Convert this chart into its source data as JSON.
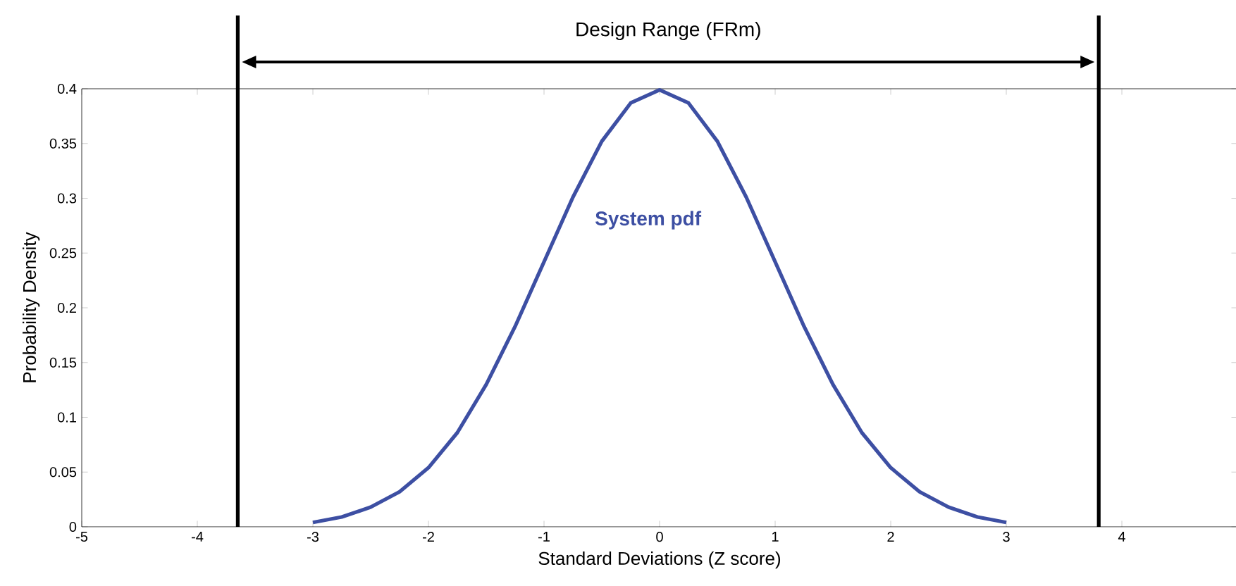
{
  "chart_data": {
    "type": "line",
    "xlabel": "Standard Deviations (Z score)",
    "ylabel": "Probability Density",
    "series": [
      {
        "name": "System pdf",
        "color": "#3d4fa3",
        "x": [
          -3,
          -2.75,
          -2.5,
          -2.25,
          -2,
          -1.75,
          -1.5,
          -1.25,
          -1,
          -0.75,
          -0.5,
          -0.25,
          0,
          0.25,
          0.5,
          0.75,
          1,
          1.25,
          1.5,
          1.75,
          2,
          2.25,
          2.5,
          2.75,
          3
        ],
        "values": [
          0.004,
          0.009,
          0.018,
          0.032,
          0.054,
          0.086,
          0.13,
          0.183,
          0.242,
          0.301,
          0.352,
          0.387,
          0.399,
          0.387,
          0.352,
          0.301,
          0.242,
          0.183,
          0.13,
          0.086,
          0.054,
          0.032,
          0.018,
          0.009,
          0.004
        ]
      }
    ],
    "xlim": [
      -5,
      5
    ],
    "ylim": [
      0,
      0.4
    ],
    "xticks": [
      -5,
      -4,
      -3,
      -2,
      -1,
      0,
      1,
      2,
      3,
      4
    ],
    "yticks": [
      0,
      0.05,
      0.1,
      0.15,
      0.2,
      0.25,
      0.3,
      0.35,
      0.4
    ],
    "ref_lines": [
      {
        "axis": "x",
        "value": -3.65,
        "color": "#000000"
      },
      {
        "axis": "x",
        "value": 3.8,
        "color": "#000000"
      }
    ],
    "annotations": [
      "Design Range (FRm)"
    ],
    "grid": false,
    "legend": false,
    "marker": "none",
    "line_style": "solid"
  }
}
